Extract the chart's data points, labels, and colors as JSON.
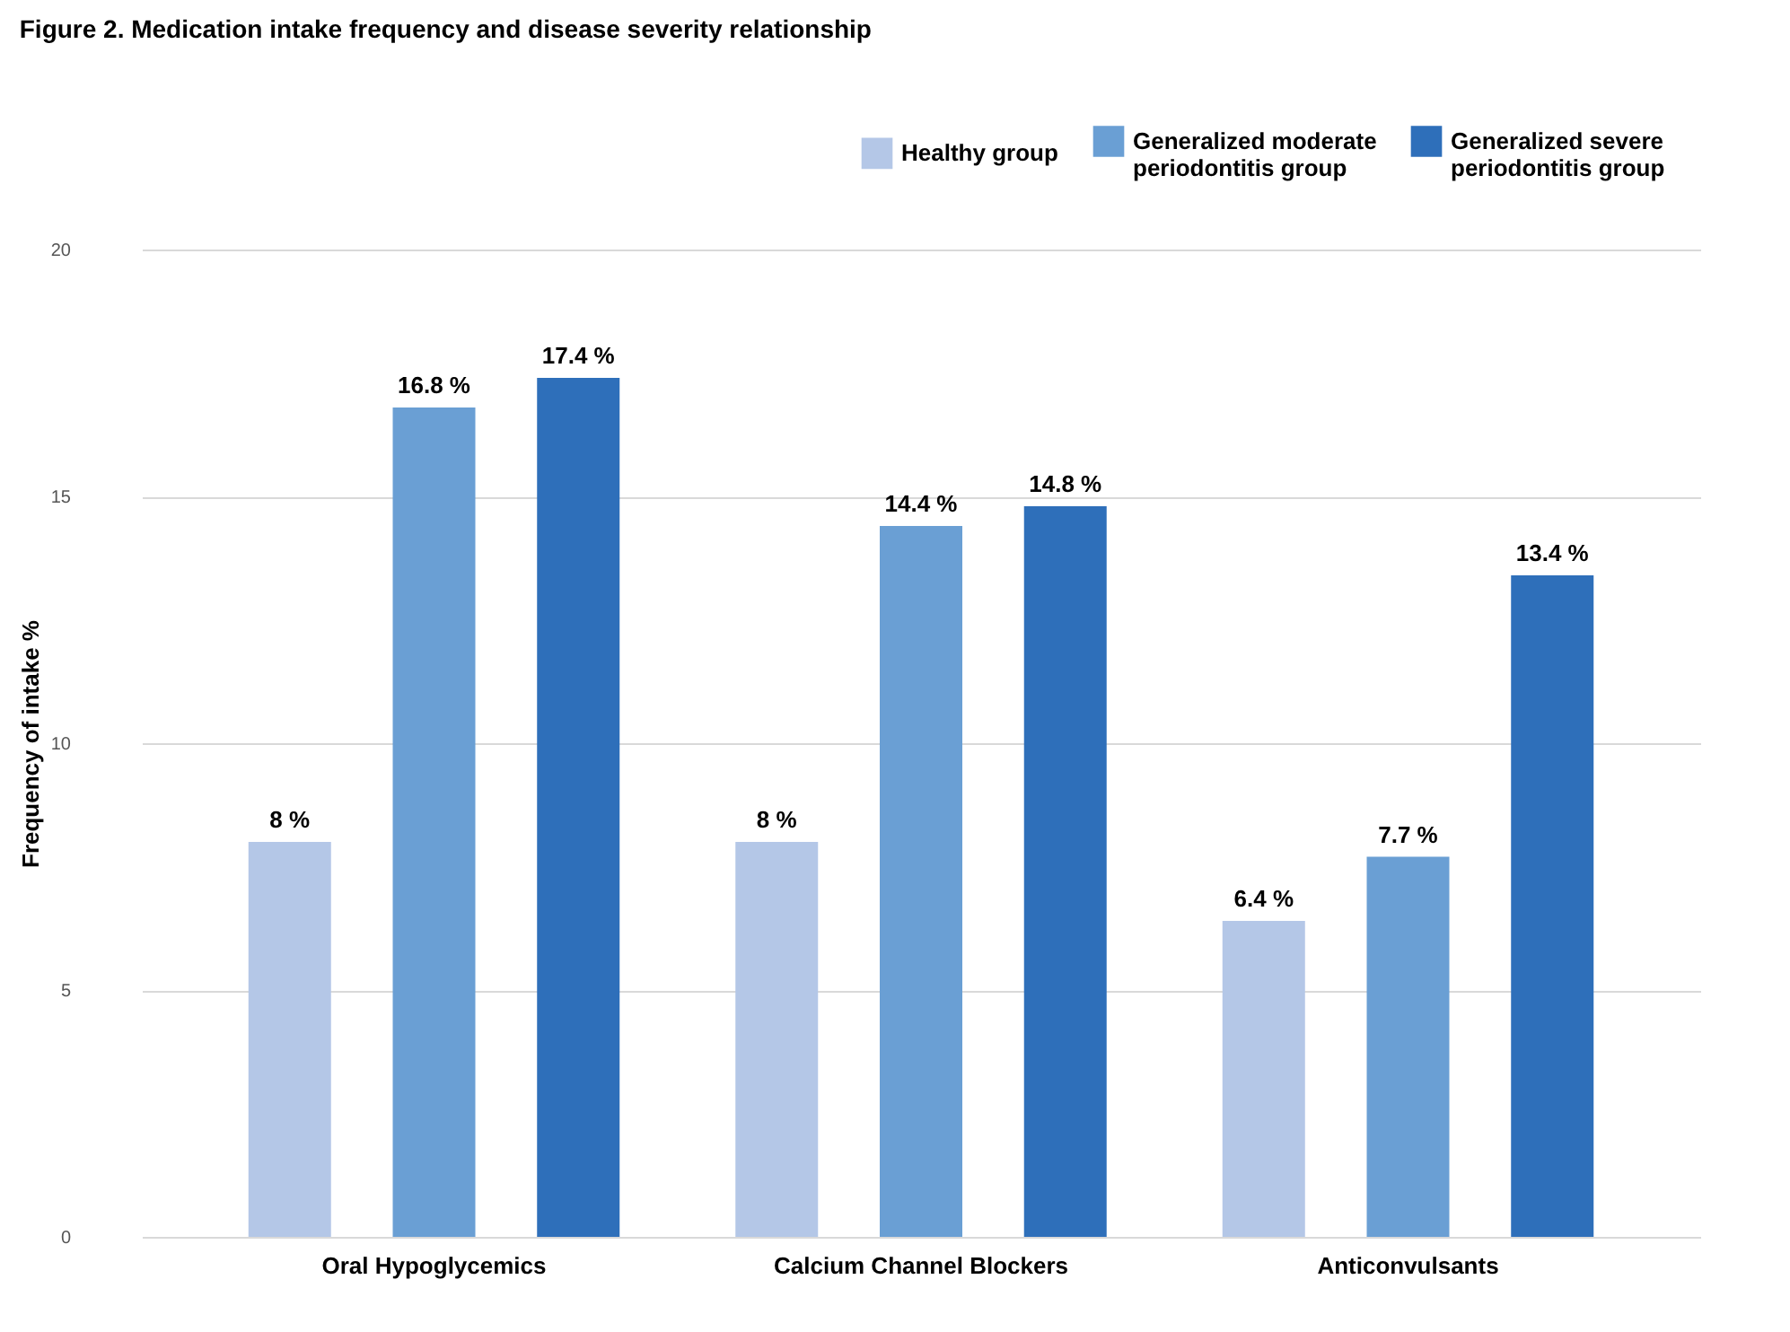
{
  "chart_data": {
    "type": "bar",
    "title": "Figure 2. Medication intake frequency and disease severity relationship",
    "ylabel": "Frequency of intake %",
    "categories": [
      "Oral Hypoglycemics",
      "Calcium Channel Blockers",
      "Anticonvulsants"
    ],
    "series": [
      {
        "name": "Healthy group",
        "color": "#b4c7e7",
        "values": [
          8,
          8,
          6.4
        ],
        "value_labels": [
          "8 %",
          "8 %",
          "6.4 %"
        ]
      },
      {
        "name": "Generalized moderate periodontitis group",
        "color": "#6a9fd4",
        "values": [
          16.8,
          14.4,
          7.7
        ],
        "value_labels": [
          "16.8 %",
          "14.4 %",
          "7.7 %"
        ]
      },
      {
        "name": "Generalized severe periodontitis group",
        "color": "#2e6fba",
        "values": [
          17.4,
          14.8,
          13.4
        ],
        "value_labels": [
          "17.4 %",
          "14.8 %",
          "13.4 %"
        ]
      }
    ],
    "ylim": [
      0,
      20
    ],
    "yticks": [
      0,
      5,
      10,
      15,
      20
    ],
    "grid": "y",
    "legend": "top right"
  }
}
